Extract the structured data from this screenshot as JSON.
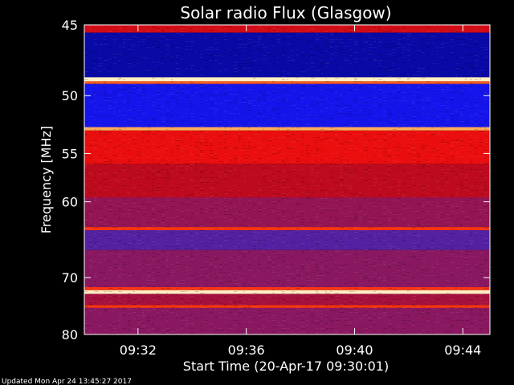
{
  "chart_data": {
    "type": "heatmap",
    "title": "Solar radio Flux (Glasgow)",
    "xlabel": "Start Time (20-Apr-17 09:30:01)",
    "ylabel": "Frequency [MHz]",
    "x_ticks": [
      "09:32",
      "09:36",
      "09:40",
      "09:44"
    ],
    "y_ticks": [
      "45",
      "50",
      "55",
      "60",
      "70",
      "80"
    ],
    "xlim": [
      "09:30:01",
      "09:45:00"
    ],
    "ylim": [
      45,
      80
    ],
    "y_scale": "reciprocal",
    "grid": false,
    "colormap": "blue-red-yellow-white",
    "bands": [
      {
        "from": 45.0,
        "to": 45.5,
        "level": 0.55
      },
      {
        "from": 45.5,
        "to": 48.6,
        "level": 0.08
      },
      {
        "from": 48.6,
        "to": 48.9,
        "level": 0.95
      },
      {
        "from": 48.9,
        "to": 49.1,
        "level": 0.75
      },
      {
        "from": 49.1,
        "to": 52.6,
        "level": 0.18
      },
      {
        "from": 52.6,
        "to": 52.9,
        "level": 0.85
      },
      {
        "from": 52.9,
        "to": 56.0,
        "level": 0.62
      },
      {
        "from": 56.0,
        "to": 59.5,
        "level": 0.5
      },
      {
        "from": 59.5,
        "to": 63.0,
        "level": 0.42
      },
      {
        "from": 63.0,
        "to": 63.4,
        "level": 0.7
      },
      {
        "from": 63.4,
        "to": 66.0,
        "level": 0.3
      },
      {
        "from": 66.0,
        "to": 71.5,
        "level": 0.4
      },
      {
        "from": 71.5,
        "to": 72.0,
        "level": 0.7
      },
      {
        "from": 72.0,
        "to": 72.6,
        "level": 0.95
      },
      {
        "from": 72.6,
        "to": 74.5,
        "level": 0.45
      },
      {
        "from": 74.5,
        "to": 75.0,
        "level": 0.7
      },
      {
        "from": 75.0,
        "to": 80.0,
        "level": 0.4
      }
    ]
  },
  "footer": "Updated Mon Apr 24 13:45:27 2017"
}
